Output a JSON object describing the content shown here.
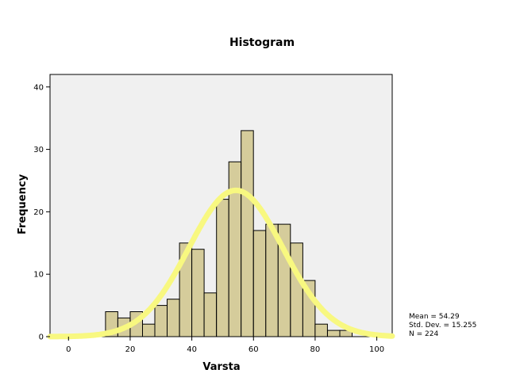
{
  "chart_data": {
    "type": "bar",
    "title": "Histogram",
    "xlabel": "Varsta",
    "ylabel": "Frequency",
    "xlim": [
      -6,
      105
    ],
    "ylim": [
      0,
      42
    ],
    "xticks": [
      0,
      20,
      40,
      60,
      80,
      100
    ],
    "yticks": [
      0,
      10,
      20,
      30,
      40
    ],
    "bin_width": 4,
    "bins": [
      {
        "x0": 12,
        "x1": 16,
        "value": 4
      },
      {
        "x0": 16,
        "x1": 20,
        "value": 3
      },
      {
        "x0": 20,
        "x1": 24,
        "value": 4
      },
      {
        "x0": 24,
        "x1": 28,
        "value": 2
      },
      {
        "x0": 28,
        "x1": 32,
        "value": 5
      },
      {
        "x0": 32,
        "x1": 36,
        "value": 6
      },
      {
        "x0": 36,
        "x1": 40,
        "value": 15
      },
      {
        "x0": 40,
        "x1": 44,
        "value": 14
      },
      {
        "x0": 44,
        "x1": 48,
        "value": 7
      },
      {
        "x0": 48,
        "x1": 52,
        "value": 22
      },
      {
        "x0": 52,
        "x1": 56,
        "value": 28
      },
      {
        "x0": 56,
        "x1": 60,
        "value": 33
      },
      {
        "x0": 60,
        "x1": 64,
        "value": 17
      },
      {
        "x0": 64,
        "x1": 68,
        "value": 18
      },
      {
        "x0": 68,
        "x1": 72,
        "value": 18
      },
      {
        "x0": 72,
        "x1": 76,
        "value": 15
      },
      {
        "x0": 76,
        "x1": 80,
        "value": 9
      },
      {
        "x0": 80,
        "x1": 84,
        "value": 2
      },
      {
        "x0": 84,
        "x1": 88,
        "value": 1
      },
      {
        "x0": 88,
        "x1": 92,
        "value": 1
      }
    ],
    "normal_curve": {
      "mean": 54.29,
      "std_dev": 15.255,
      "n": 224
    },
    "stats_text": [
      "Mean = 54.29",
      "Std. Dev. = 15.255",
      "N = 224"
    ],
    "grid": false,
    "colors": {
      "bar_fill": "#d5cc9b",
      "bar_stroke": "#000000",
      "plot_background": "#f0f0f0",
      "curve": "#f8f880"
    }
  }
}
